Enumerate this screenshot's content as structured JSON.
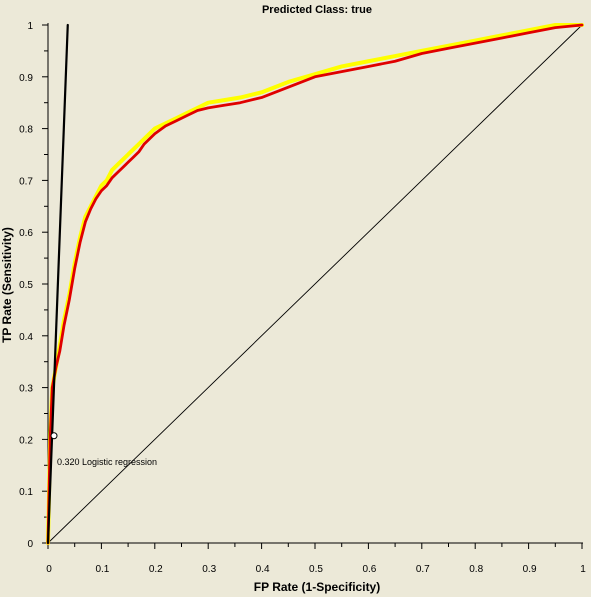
{
  "chart_data": {
    "type": "line",
    "title": "Predicted Class: true",
    "xlabel": "FP Rate (1-Specificity)",
    "ylabel": "TP Rate (Sensitivity)",
    "xlim": [
      0,
      1
    ],
    "ylim": [
      0,
      1
    ],
    "x_ticks": [
      "0",
      "0.1",
      "0.2",
      "0.3",
      "0.4",
      "0.5",
      "0.6",
      "0.7",
      "0.8",
      "0.9",
      "1"
    ],
    "y_ticks": [
      "0",
      "0.1",
      "0.2",
      "0.3",
      "0.4",
      "0.5",
      "0.6",
      "0.7",
      "0.8",
      "0.9",
      "1"
    ],
    "grid": false,
    "legend": null,
    "series": [
      {
        "color": "#ffff00",
        "x": [
          0,
          0.004,
          0.008,
          0.015,
          0.022,
          0.03,
          0.04,
          0.05,
          0.06,
          0.07,
          0.08,
          0.09,
          0.1,
          0.11,
          0.12,
          0.13,
          0.14,
          0.15,
          0.16,
          0.17,
          0.18,
          0.2,
          0.22,
          0.24,
          0.26,
          0.28,
          0.3,
          0.33,
          0.36,
          0.4,
          0.45,
          0.5,
          0.55,
          0.6,
          0.65,
          0.7,
          0.75,
          0.8,
          0.85,
          0.9,
          0.95,
          1
        ],
        "y": [
          0,
          0.2,
          0.3,
          0.34,
          0.38,
          0.43,
          0.48,
          0.54,
          0.59,
          0.63,
          0.65,
          0.67,
          0.69,
          0.7,
          0.72,
          0.73,
          0.74,
          0.75,
          0.76,
          0.77,
          0.78,
          0.8,
          0.81,
          0.82,
          0.83,
          0.84,
          0.85,
          0.855,
          0.86,
          0.87,
          0.89,
          0.905,
          0.92,
          0.93,
          0.94,
          0.95,
          0.96,
          0.97,
          0.98,
          0.99,
          1.0,
          1.0
        ]
      },
      {
        "color": "#e00000",
        "x": [
          0,
          0.004,
          0.008,
          0.015,
          0.022,
          0.03,
          0.04,
          0.05,
          0.06,
          0.07,
          0.08,
          0.09,
          0.1,
          0.11,
          0.12,
          0.13,
          0.14,
          0.15,
          0.16,
          0.17,
          0.18,
          0.2,
          0.22,
          0.24,
          0.26,
          0.28,
          0.3,
          0.33,
          0.36,
          0.4,
          0.45,
          0.5,
          0.55,
          0.6,
          0.65,
          0.7,
          0.75,
          0.8,
          0.85,
          0.9,
          0.95,
          1
        ],
        "y": [
          0,
          0.2,
          0.3,
          0.34,
          0.37,
          0.42,
          0.47,
          0.53,
          0.58,
          0.62,
          0.645,
          0.665,
          0.68,
          0.69,
          0.705,
          0.715,
          0.725,
          0.735,
          0.745,
          0.755,
          0.77,
          0.79,
          0.805,
          0.815,
          0.825,
          0.835,
          0.84,
          0.845,
          0.85,
          0.86,
          0.88,
          0.9,
          0.91,
          0.92,
          0.93,
          0.945,
          0.955,
          0.965,
          0.975,
          0.985,
          0.995,
          1.0
        ]
      },
      {
        "color": "#000000",
        "x": [
          0,
          0.037
        ],
        "y": [
          0,
          1
        ]
      },
      {
        "color": "#000000",
        "x": [
          0,
          1
        ],
        "y": [
          0,
          1
        ]
      }
    ],
    "annotations": [
      {
        "x": 0.0,
        "y": 0.207,
        "text": "0.320 Logistic regression"
      }
    ]
  }
}
